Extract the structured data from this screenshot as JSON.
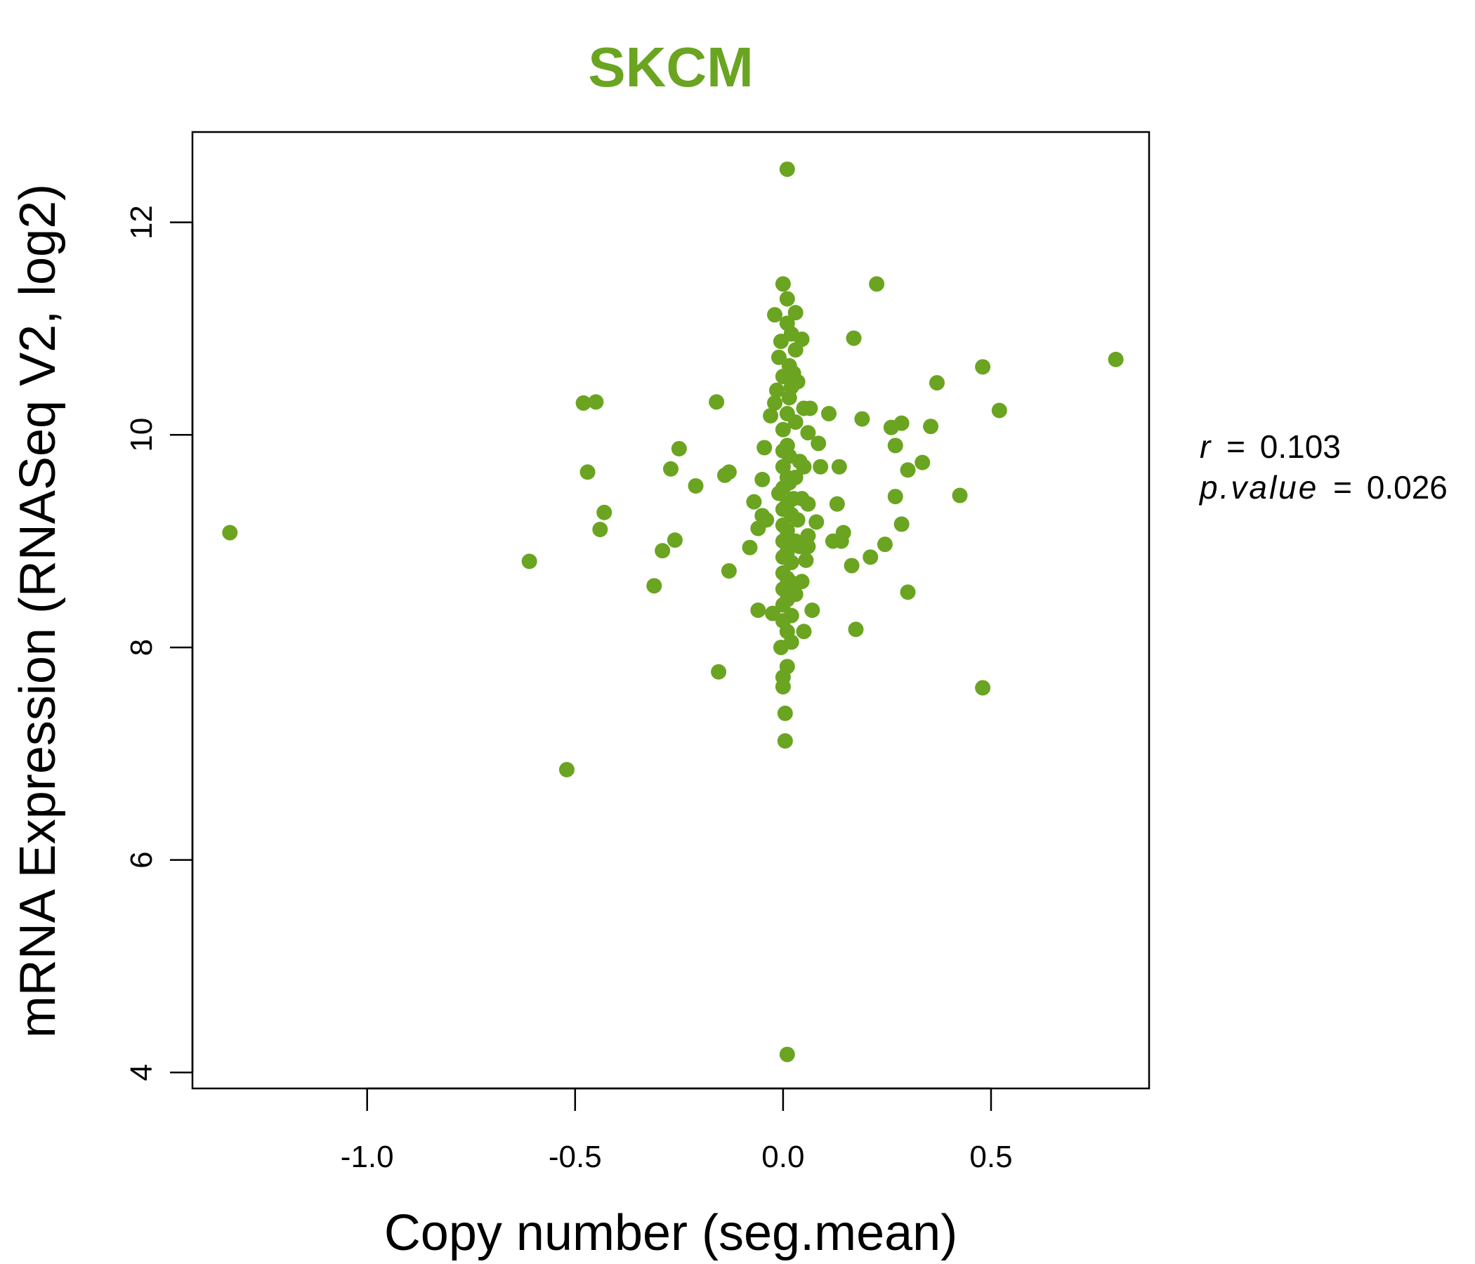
{
  "colors": {
    "accent": "#6aa421",
    "axis": "#000000",
    "background": "#ffffff"
  },
  "stats": {
    "r_label": "r",
    "r_value": "0.103",
    "p_label": "p.value",
    "p_value": "0.026",
    "equals": "="
  },
  "chart_data": {
    "type": "scatter",
    "title": "SKCM",
    "xlabel": "Copy number (seg.mean)",
    "ylabel": "mRNA Expression (RNASeq V2, log2)",
    "xlim": [
      -1.42,
      0.88
    ],
    "ylim": [
      3.85,
      12.85
    ],
    "x_ticks": [
      -1.0,
      -0.5,
      0.0,
      0.5
    ],
    "x_tick_labels": [
      "-1.0",
      "-0.5",
      "0.0",
      "0.5"
    ],
    "y_ticks": [
      4,
      6,
      8,
      10,
      12
    ],
    "y_tick_labels": [
      "4",
      "6",
      "8",
      "10",
      "12"
    ],
    "grid": false,
    "legend": "none",
    "series": [
      {
        "color": "#6aa421",
        "points": [
          [
            -1.33,
            9.08
          ],
          [
            -0.61,
            8.81
          ],
          [
            -0.52,
            6.85
          ],
          [
            -0.48,
            10.3
          ],
          [
            -0.45,
            10.31
          ],
          [
            -0.47,
            9.65
          ],
          [
            -0.43,
            9.27
          ],
          [
            -0.44,
            9.11
          ],
          [
            -0.31,
            8.58
          ],
          [
            -0.29,
            8.91
          ],
          [
            -0.26,
            9.01
          ],
          [
            -0.27,
            9.68
          ],
          [
            -0.25,
            9.87
          ],
          [
            -0.21,
            9.52
          ],
          [
            -0.16,
            10.31
          ],
          [
            -0.14,
            9.62
          ],
          [
            -0.13,
            9.65
          ],
          [
            -0.13,
            8.72
          ],
          [
            -0.155,
            7.77
          ],
          [
            -0.08,
            8.94
          ],
          [
            -0.07,
            9.37
          ],
          [
            -0.06,
            9.12
          ],
          [
            -0.05,
            9.24
          ],
          [
            -0.06,
            8.35
          ],
          [
            -0.05,
            9.58
          ],
          [
            -0.045,
            9.88
          ],
          [
            -0.04,
            9.2
          ],
          [
            -0.03,
            10.18
          ],
          [
            -0.025,
            8.32
          ],
          [
            -0.02,
            10.3
          ],
          [
            -0.02,
            11.13
          ],
          [
            -0.015,
            10.42
          ],
          [
            -0.01,
            10.73
          ],
          [
            -0.01,
            9.45
          ],
          [
            -0.005,
            8.0
          ],
          [
            -0.005,
            10.88
          ],
          [
            0.0,
            11.42
          ],
          [
            0.0,
            10.55
          ],
          [
            0.0,
            10.05
          ],
          [
            0.0,
            9.85
          ],
          [
            0.0,
            9.7
          ],
          [
            0.0,
            9.5
          ],
          [
            0.0,
            9.3
          ],
          [
            0.0,
            9.15
          ],
          [
            0.0,
            9.0
          ],
          [
            0.0,
            8.85
          ],
          [
            0.0,
            8.7
          ],
          [
            0.0,
            8.55
          ],
          [
            0.0,
            8.4
          ],
          [
            0.0,
            8.25
          ],
          [
            0.0,
            7.72
          ],
          [
            0.0,
            7.63
          ],
          [
            0.005,
            7.38
          ],
          [
            0.005,
            7.12
          ],
          [
            0.01,
            12.5
          ],
          [
            0.01,
            11.28
          ],
          [
            0.01,
            11.05
          ],
          [
            0.01,
            10.2
          ],
          [
            0.01,
            9.9
          ],
          [
            0.01,
            9.6
          ],
          [
            0.01,
            9.35
          ],
          [
            0.01,
            9.1
          ],
          [
            0.01,
            8.9
          ],
          [
            0.01,
            8.65
          ],
          [
            0.01,
            8.45
          ],
          [
            0.01,
            8.15
          ],
          [
            0.01,
            7.82
          ],
          [
            0.01,
            4.17
          ],
          [
            0.015,
            10.65
          ],
          [
            0.015,
            10.35
          ],
          [
            0.015,
            9.8
          ],
          [
            0.015,
            9.55
          ],
          [
            0.02,
            10.95
          ],
          [
            0.02,
            10.45
          ],
          [
            0.02,
            9.25
          ],
          [
            0.02,
            8.8
          ],
          [
            0.02,
            8.3
          ],
          [
            0.02,
            8.05
          ],
          [
            0.025,
            10.58
          ],
          [
            0.025,
            9.4
          ],
          [
            0.025,
            8.6
          ],
          [
            0.03,
            11.15
          ],
          [
            0.03,
            10.8
          ],
          [
            0.03,
            10.12
          ],
          [
            0.03,
            9.6
          ],
          [
            0.03,
            9.0
          ],
          [
            0.03,
            8.5
          ],
          [
            0.035,
            10.5
          ],
          [
            0.035,
            9.2
          ],
          [
            0.04,
            9.75
          ],
          [
            0.04,
            8.95
          ],
          [
            0.045,
            10.9
          ],
          [
            0.045,
            9.4
          ],
          [
            0.045,
            8.62
          ],
          [
            0.05,
            10.25
          ],
          [
            0.05,
            9.7
          ],
          [
            0.05,
            8.15
          ],
          [
            0.055,
            8.82
          ],
          [
            0.06,
            10.02
          ],
          [
            0.06,
            9.35
          ],
          [
            0.06,
            9.05
          ],
          [
            0.06,
            8.95
          ],
          [
            0.065,
            10.25
          ],
          [
            0.07,
            8.35
          ],
          [
            0.08,
            9.18
          ],
          [
            0.085,
            9.92
          ],
          [
            0.09,
            9.7
          ],
          [
            0.11,
            10.2
          ],
          [
            0.12,
            9.0
          ],
          [
            0.13,
            9.35
          ],
          [
            0.135,
            9.7
          ],
          [
            0.14,
            9.0
          ],
          [
            0.145,
            9.08
          ],
          [
            0.165,
            8.77
          ],
          [
            0.17,
            10.91
          ],
          [
            0.175,
            8.17
          ],
          [
            0.19,
            10.15
          ],
          [
            0.21,
            8.85
          ],
          [
            0.225,
            11.42
          ],
          [
            0.245,
            8.97
          ],
          [
            0.26,
            10.07
          ],
          [
            0.27,
            9.9
          ],
          [
            0.27,
            9.42
          ],
          [
            0.285,
            10.11
          ],
          [
            0.285,
            9.16
          ],
          [
            0.3,
            9.67
          ],
          [
            0.3,
            8.52
          ],
          [
            0.335,
            9.74
          ],
          [
            0.355,
            10.08
          ],
          [
            0.37,
            10.49
          ],
          [
            0.425,
            9.43
          ],
          [
            0.48,
            10.64
          ],
          [
            0.48,
            7.62
          ],
          [
            0.52,
            10.23
          ],
          [
            0.8,
            10.71
          ]
        ]
      }
    ]
  }
}
